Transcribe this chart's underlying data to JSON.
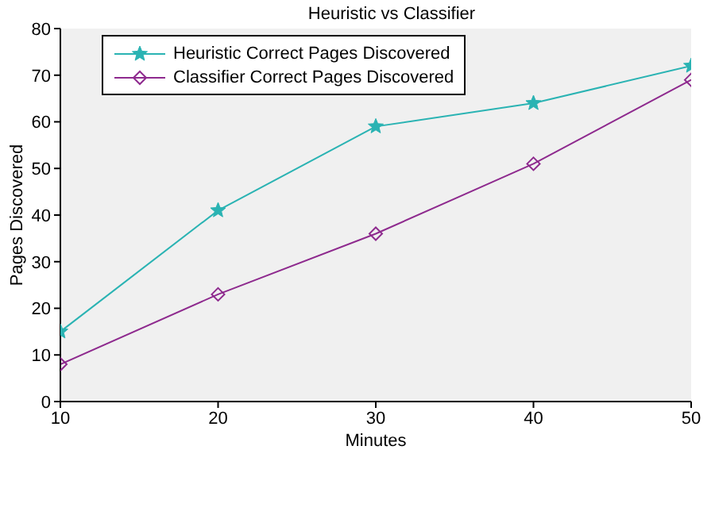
{
  "chart_data": {
    "type": "line",
    "title": "Heuristic vs Classifier",
    "xlabel": "Minutes",
    "ylabel": "Pages Discovered",
    "x": [
      10,
      20,
      30,
      40,
      50
    ],
    "series": [
      {
        "name": "Heuristic Correct Pages Discovered",
        "color": "#2ab3b3",
        "marker": "star",
        "values": [
          15,
          41,
          59,
          64,
          72
        ]
      },
      {
        "name": "Classifier Correct Pages Discovered",
        "color": "#8e2a8e",
        "marker": "diamond",
        "values": [
          8,
          23,
          36,
          51,
          69
        ]
      }
    ],
    "xlim": [
      10,
      50
    ],
    "xticks": [
      10,
      20,
      30,
      40,
      50
    ],
    "ylim": [
      0,
      80
    ],
    "yticks": [
      0,
      10,
      20,
      30,
      40,
      50,
      60,
      70,
      80
    ],
    "legend": "top left",
    "line_style": "solid"
  }
}
